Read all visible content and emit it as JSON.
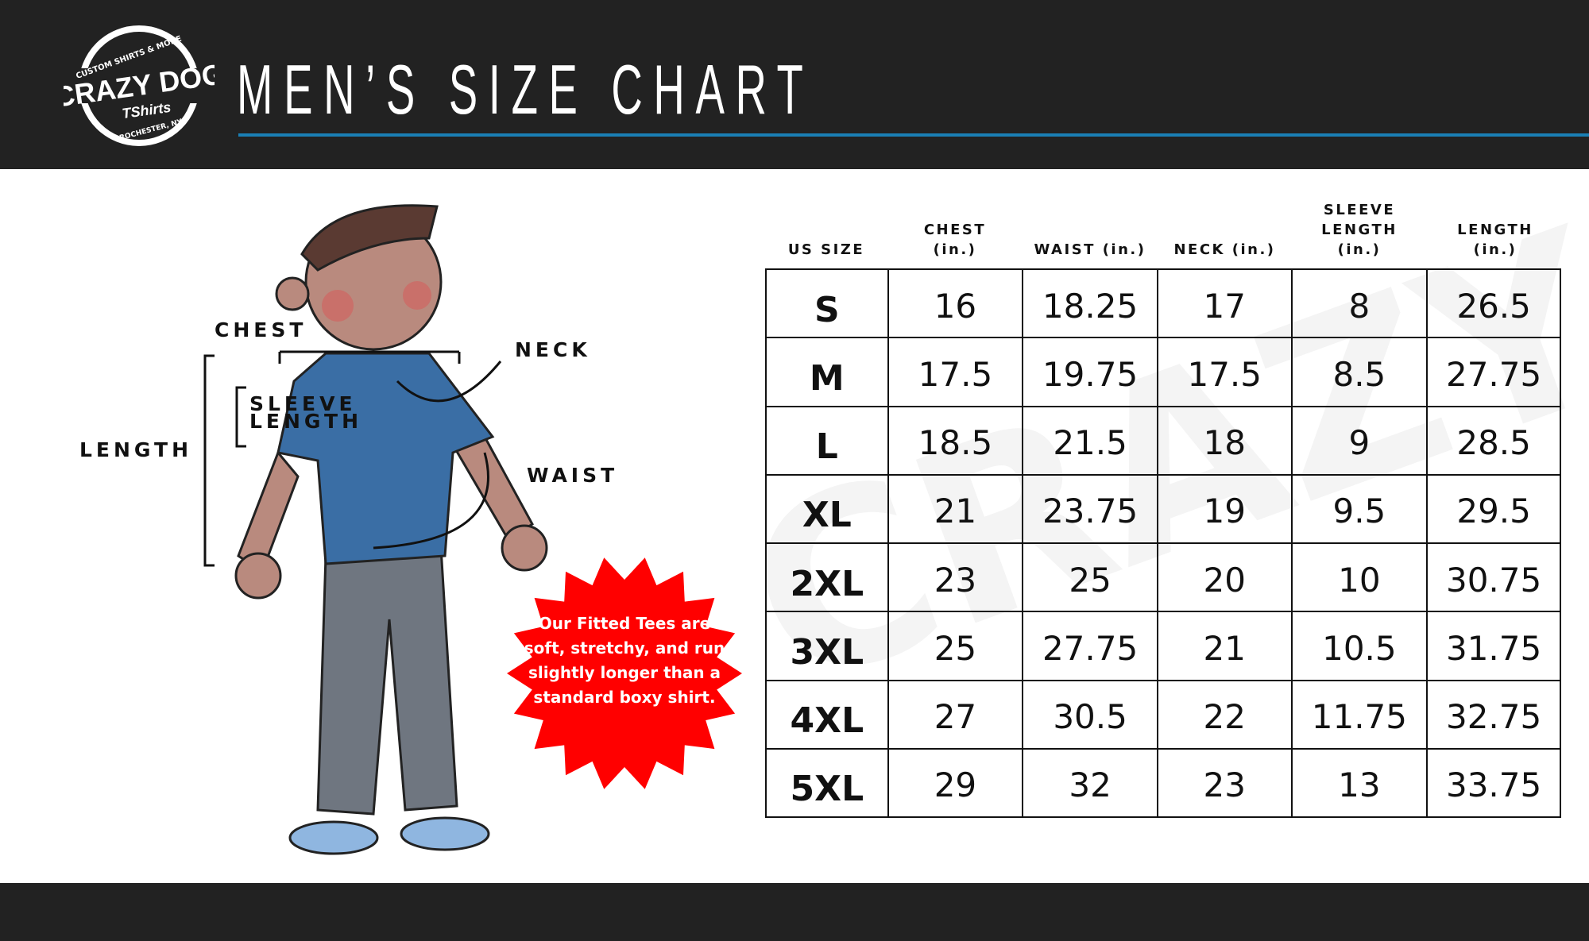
{
  "brand": {
    "logo_text": "CRAZY DOG TShirts",
    "logo_top": "CUSTOM SHIRTS & MORE",
    "logo_bottom": "ROCHESTER, NY"
  },
  "title": "MEN’S SIZE CHART",
  "colors": {
    "header_bg": "#222222",
    "accent_line": "#1a7fb5",
    "burst": "#ff0000",
    "shirt": "#3a6ea5",
    "pants": "#6f7680"
  },
  "diagram": {
    "chest": "CHEST",
    "neck": "NECK",
    "sleeve_length": "SLEEVE LENGTH",
    "length": "LENGTH",
    "waist": "WAIST"
  },
  "note": "Our Fitted Tees are soft, stretchy, and run slightly longer than a standard boxy shirt.",
  "table": {
    "headers": [
      "US SIZE",
      "CHEST (in.)",
      "WAIST (in.)",
      "NECK (in.)",
      "SLEEVE LENGTH (in.)",
      "LENGTH (in.)"
    ],
    "rows": [
      [
        "S",
        "16",
        "18.25",
        "17",
        "8",
        "26.5"
      ],
      [
        "M",
        "17.5",
        "19.75",
        "17.5",
        "8.5",
        "27.75"
      ],
      [
        "L",
        "18.5",
        "21.5",
        "18",
        "9",
        "28.5"
      ],
      [
        "XL",
        "21",
        "23.75",
        "19",
        "9.5",
        "29.5"
      ],
      [
        "2XL",
        "23",
        "25",
        "20",
        "10",
        "30.75"
      ],
      [
        "3XL",
        "25",
        "27.75",
        "21",
        "10.5",
        "31.75"
      ],
      [
        "4XL",
        "27",
        "30.5",
        "22",
        "11.75",
        "32.75"
      ],
      [
        "5XL",
        "29",
        "32",
        "23",
        "13",
        "33.75"
      ]
    ]
  }
}
